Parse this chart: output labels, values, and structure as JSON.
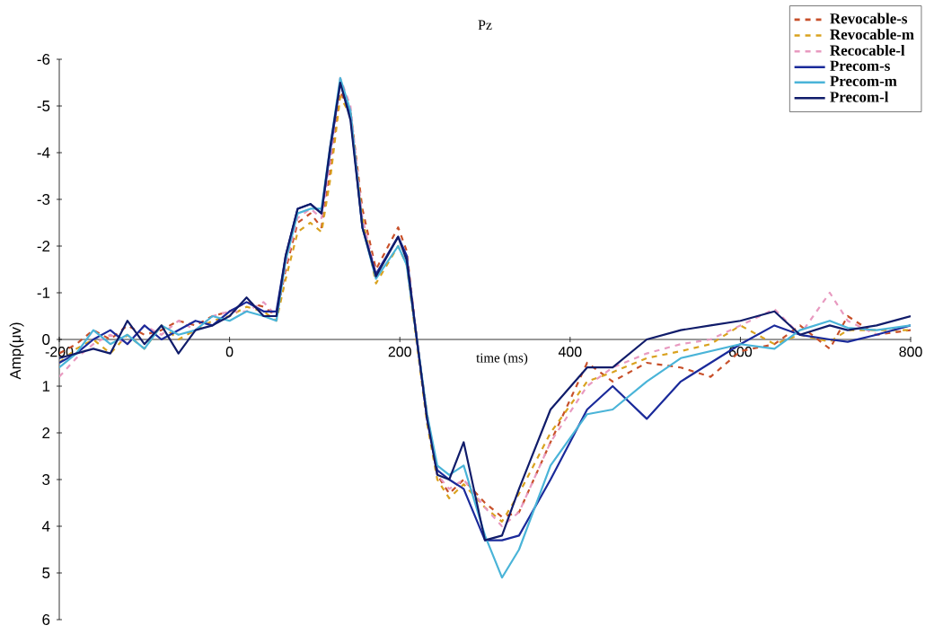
{
  "chart_data": {
    "type": "line",
    "title": "Pz",
    "xlabel": "time (ms)",
    "ylabel": "Amp(μv)",
    "xlim": [
      -200,
      800
    ],
    "xticks": [
      -200,
      0,
      200,
      400,
      600,
      800
    ],
    "ylim": [
      6,
      -6
    ],
    "yticks": [
      -6,
      -5,
      -4,
      -3,
      -2,
      -1,
      0,
      1,
      2,
      3,
      4,
      5,
      6
    ],
    "legend": "top right",
    "marker": "none",
    "x": [
      -200,
      -180,
      -160,
      -140,
      -120,
      -100,
      -80,
      -60,
      -40,
      -20,
      0,
      20,
      40,
      55,
      66,
      80,
      95,
      108,
      118,
      130,
      142,
      156,
      172,
      198,
      208,
      220,
      232,
      244,
      258,
      275,
      300,
      320,
      340,
      377,
      420,
      450,
      490,
      530,
      565,
      600,
      640,
      670,
      705,
      726,
      760,
      800
    ],
    "series": [
      {
        "name": "Revocable-s",
        "color": "#c8502a",
        "line_style": "dashed",
        "values": [
          0.3,
          0.1,
          -0.2,
          0.0,
          -0.3,
          -0.1,
          -0.2,
          -0.4,
          -0.3,
          -0.5,
          -0.6,
          -0.8,
          -0.7,
          -0.5,
          -1.5,
          -2.5,
          -2.7,
          -2.4,
          -3.6,
          -5.3,
          -4.9,
          -2.8,
          -1.5,
          -2.4,
          -1.9,
          0.0,
          1.6,
          2.9,
          3.3,
          3.0,
          3.5,
          3.8,
          3.7,
          2.2,
          0.5,
          0.9,
          0.5,
          0.6,
          0.8,
          0.25,
          0.1,
          -0.3,
          0.2,
          -0.5,
          -0.1,
          -0.2
        ]
      },
      {
        "name": "Revocable-m",
        "color": "#d9a21f",
        "line_style": "dashed",
        "values": [
          0.5,
          0.2,
          0.0,
          0.3,
          -0.1,
          0.2,
          -0.3,
          0.0,
          -0.2,
          -0.4,
          -0.5,
          -0.7,
          -0.6,
          -0.4,
          -1.3,
          -2.3,
          -2.5,
          -2.3,
          -3.4,
          -5.2,
          -4.8,
          -2.6,
          -1.2,
          -2.0,
          -1.6,
          0.1,
          1.8,
          3.0,
          3.4,
          3.1,
          3.6,
          3.9,
          3.3,
          2.0,
          0.9,
          0.7,
          0.4,
          0.25,
          0.1,
          -0.3,
          0.1,
          -0.1,
          0.05,
          -0.2,
          -0.2,
          -0.2
        ]
      },
      {
        "name": "Recocable-l",
        "color": "#e89ac0",
        "line_style": "dashed",
        "values": [
          0.8,
          0.4,
          0.1,
          -0.1,
          0.1,
          -0.3,
          -0.1,
          -0.4,
          -0.2,
          -0.5,
          -0.6,
          -0.6,
          -0.8,
          -0.5,
          -1.6,
          -2.6,
          -2.8,
          -2.6,
          -3.8,
          -5.6,
          -5.0,
          -2.6,
          -1.4,
          -2.2,
          -1.8,
          0.0,
          1.7,
          2.9,
          3.2,
          3.0,
          3.6,
          4.0,
          3.7,
          2.2,
          1.0,
          0.6,
          0.3,
          0.1,
          0.0,
          -0.3,
          -0.65,
          -0.1,
          -1.0,
          -0.4,
          -0.1,
          -0.3
        ]
      },
      {
        "name": "Precom-s",
        "color": "#1a2a9a",
        "line_style": "solid",
        "values": [
          0.5,
          0.3,
          0.0,
          -0.2,
          0.1,
          -0.3,
          0.0,
          -0.2,
          -0.4,
          -0.3,
          -0.6,
          -0.8,
          -0.6,
          -0.6,
          -1.8,
          -2.8,
          -2.9,
          -2.7,
          -4.0,
          -5.5,
          -4.8,
          -2.4,
          -1.4,
          -2.2,
          -1.8,
          0.0,
          1.7,
          2.8,
          3.0,
          3.2,
          4.3,
          4.3,
          4.2,
          3.0,
          1.5,
          1.0,
          1.7,
          0.9,
          0.5,
          0.1,
          -0.3,
          -0.1,
          0.0,
          0.05,
          -0.1,
          -0.3
        ]
      },
      {
        "name": "Precom-m",
        "color": "#4ab4d8",
        "line_style": "solid",
        "values": [
          0.6,
          0.3,
          -0.2,
          0.1,
          -0.1,
          0.2,
          -0.3,
          -0.1,
          -0.2,
          -0.5,
          -0.4,
          -0.6,
          -0.5,
          -0.4,
          -1.7,
          -2.7,
          -2.8,
          -2.8,
          -4.1,
          -5.6,
          -4.9,
          -2.4,
          -1.3,
          -2.0,
          -1.6,
          0.0,
          1.6,
          2.7,
          2.9,
          2.7,
          4.2,
          5.1,
          4.5,
          2.7,
          1.6,
          1.5,
          0.9,
          0.4,
          0.25,
          0.1,
          0.2,
          -0.2,
          -0.4,
          -0.25,
          -0.2,
          -0.3
        ]
      },
      {
        "name": "Precom-l",
        "color": "#101c6a",
        "line_style": "solid",
        "values": [
          0.4,
          0.3,
          0.2,
          0.3,
          -0.4,
          0.1,
          -0.3,
          0.3,
          -0.2,
          -0.3,
          -0.5,
          -0.9,
          -0.5,
          -0.5,
          -1.8,
          -2.8,
          -2.9,
          -2.7,
          -4.1,
          -5.5,
          -4.7,
          -2.4,
          -1.35,
          -2.2,
          -1.7,
          0.0,
          1.7,
          2.9,
          3.0,
          2.2,
          4.3,
          4.2,
          3.2,
          1.5,
          0.6,
          0.6,
          0.0,
          -0.2,
          -0.3,
          -0.4,
          -0.6,
          -0.1,
          -0.3,
          -0.2,
          -0.3,
          -0.5
        ]
      }
    ]
  }
}
